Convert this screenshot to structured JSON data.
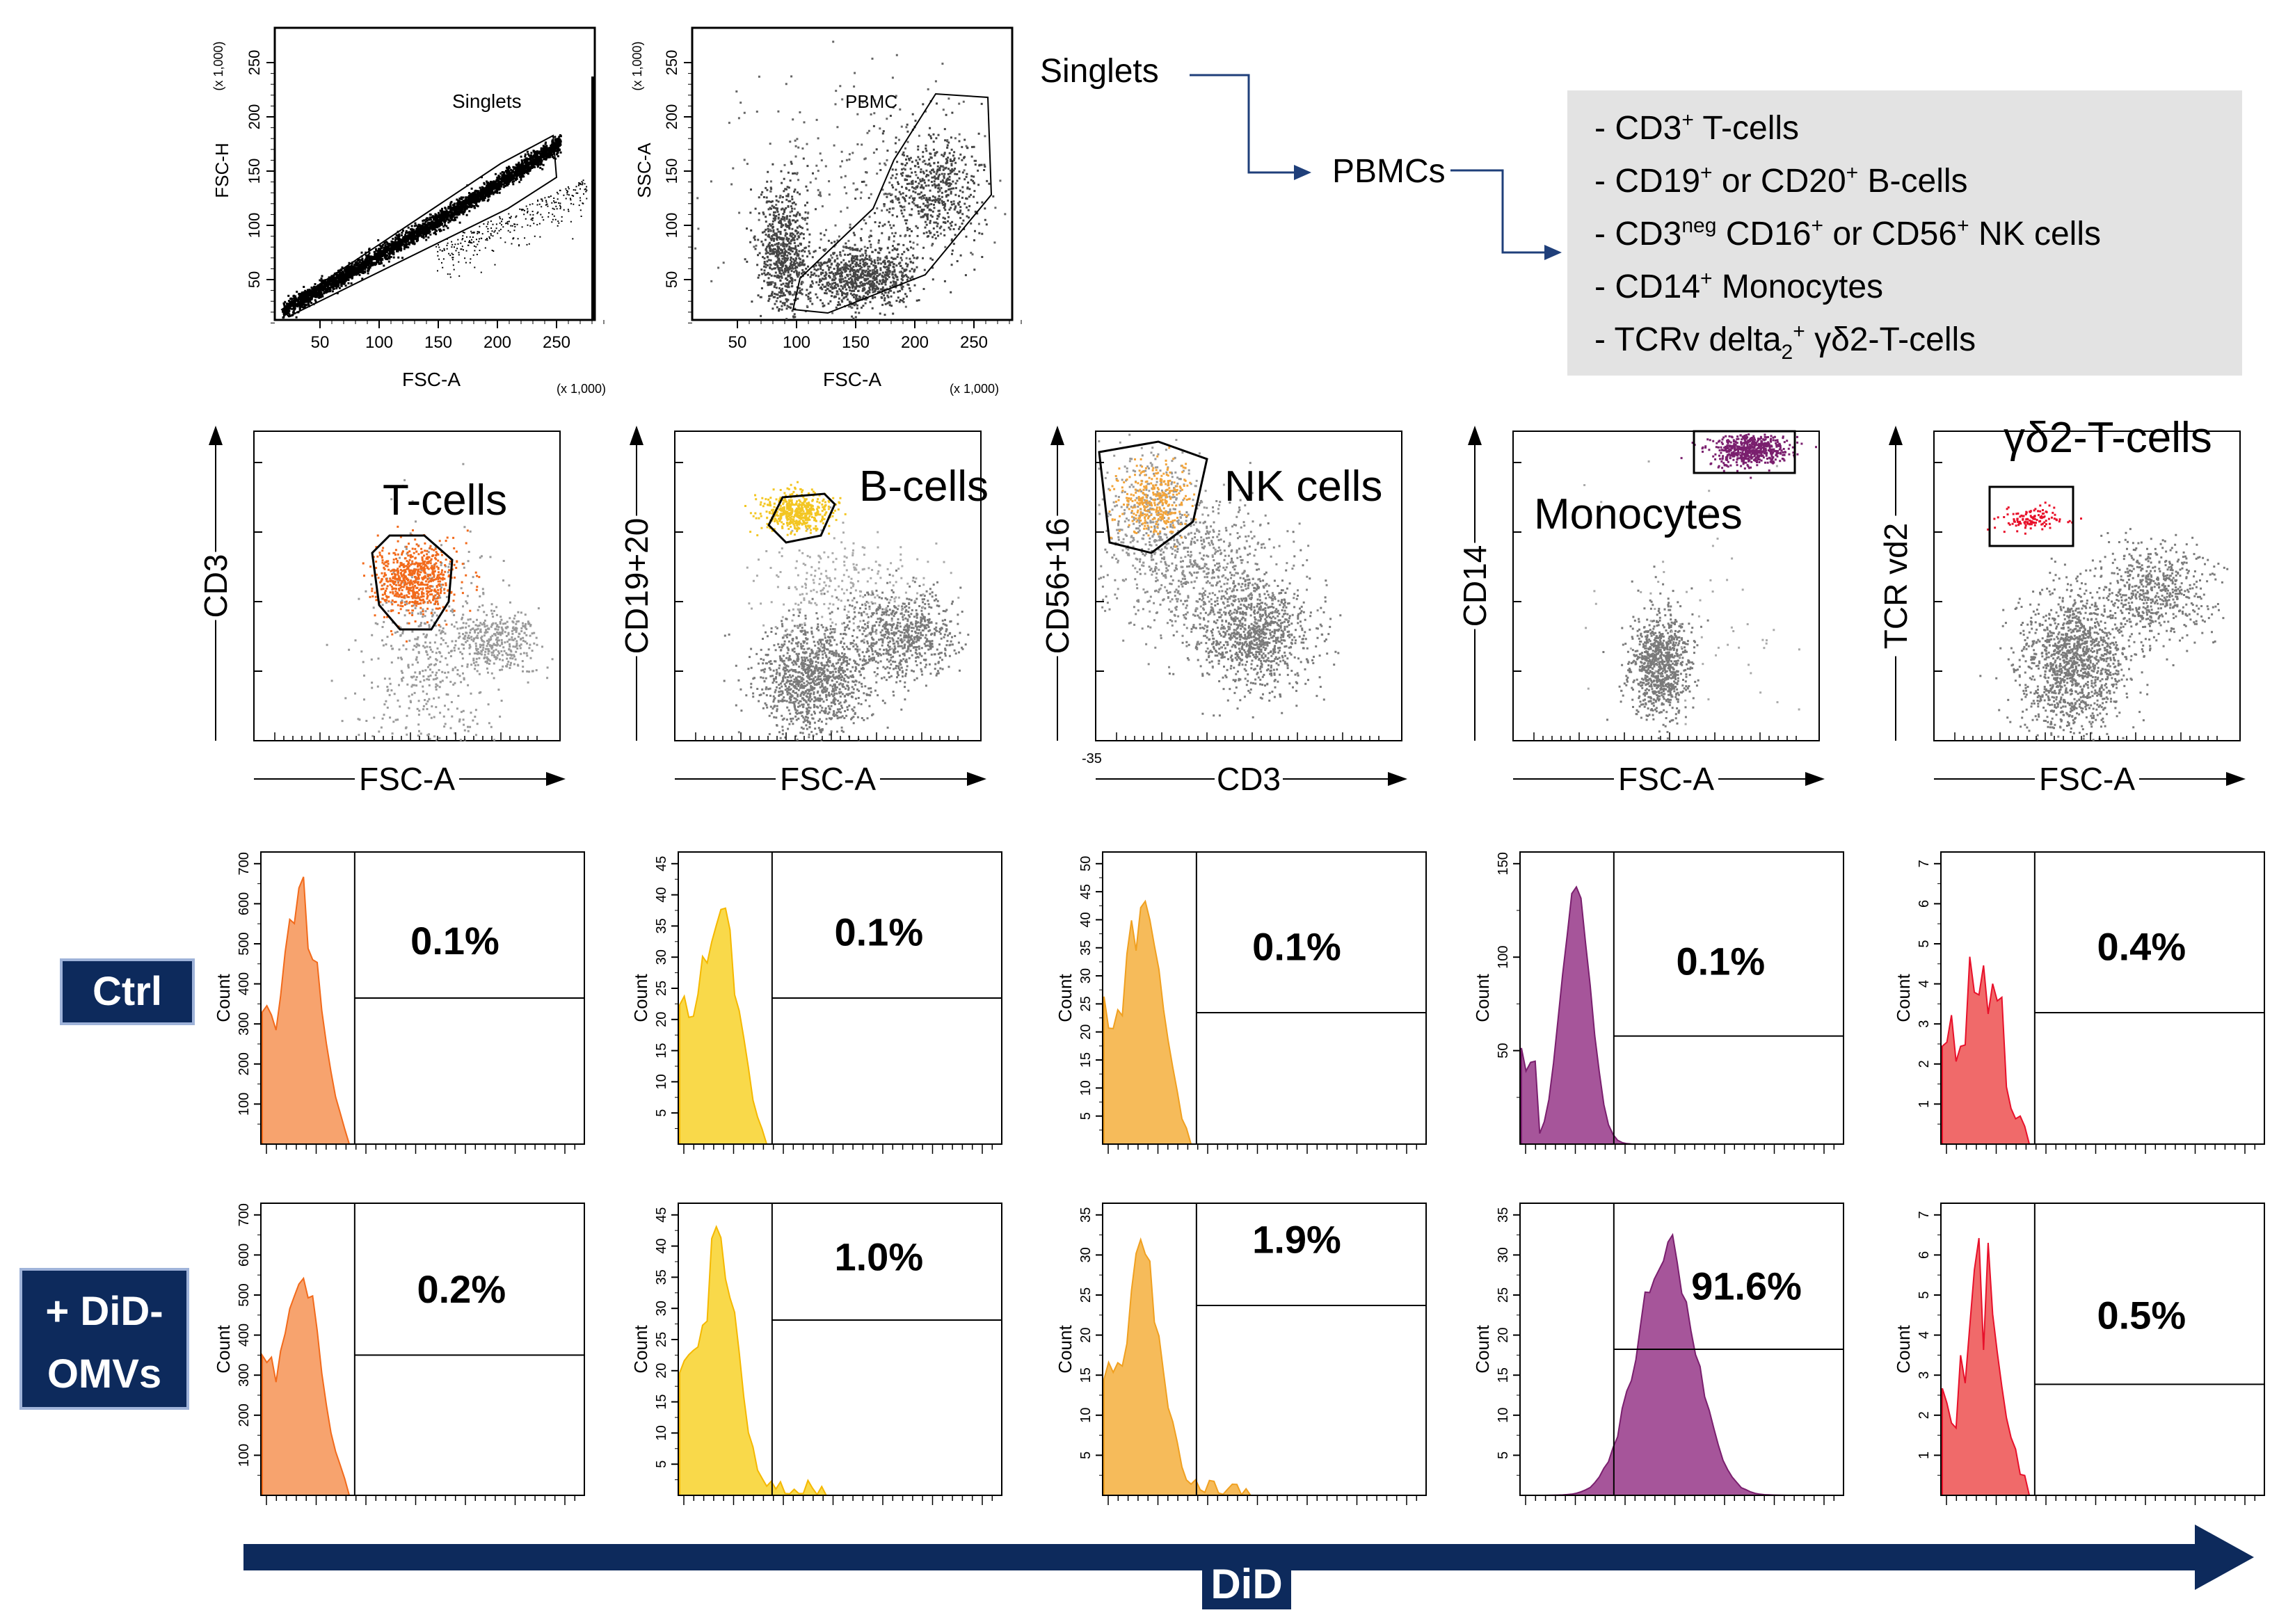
{
  "colors": {
    "tcell": "#f26a1b",
    "tcell_hist": "#f7a36e",
    "bcell": "#f3c623",
    "bcell_hist": "#f9d94a",
    "nk": "#f2a43a",
    "nk_hist": "#f6bb5a",
    "mono": "#7a1f6e",
    "mono_hist": "#a6559a",
    "gd": "#e8102a",
    "gd_hist": "#f06a6a",
    "navy": "#0d2a5c",
    "grey_dots": "#777777",
    "box_grey": "#e3e3e3"
  },
  "gating": {
    "plot1": {
      "ylabel": "FSC-H",
      "xlabel": "FSC-A",
      "scale": "(x 1,000)",
      "gate": "Singlets",
      "xticks": [
        "50",
        "100",
        "150",
        "200",
        "250"
      ],
      "yticks": [
        "50",
        "100",
        "150",
        "200",
        "250"
      ]
    },
    "plot2": {
      "ylabel": "SSC-A",
      "xlabel": "FSC-A",
      "scale": "(x 1,000)",
      "gate": "PBMC",
      "xticks": [
        "50",
        "100",
        "150",
        "200",
        "250"
      ],
      "yticks": [
        "50",
        "100",
        "150",
        "200",
        "250"
      ]
    },
    "flow_singlets": "Singlets",
    "flow_pbmcs": "PBMCs",
    "populations": [
      {
        "pre": "- CD3",
        "sup": "+",
        "post": " T-cells"
      },
      {
        "pre": "- CD19",
        "sup": "+",
        "mid": " or CD20",
        "sup2": "+",
        "post": " B-cells"
      },
      {
        "pre": "- CD3",
        "sup": "neg",
        "mid": " CD16",
        "sup2": "+",
        "mid2": " or CD56",
        "sup3": "+",
        "post": " NK cells"
      },
      {
        "pre": "- CD14",
        "sup": "+",
        "post": " Monocytes"
      },
      {
        "pre": "- TCRv delta",
        "sub": "2",
        "sup": "+",
        "post": " γδ2-T-cells"
      }
    ]
  },
  "scatter_panels": [
    {
      "ylabel": "CD3",
      "xlabel": "FSC-A",
      "title": "T-cells"
    },
    {
      "ylabel": "CD19+20",
      "xlabel": "FSC-A",
      "title": "B-cells"
    },
    {
      "ylabel": "CD56+16",
      "xlabel": "CD3",
      "title": "NK cells",
      "xmin_label": "-35"
    },
    {
      "ylabel": "CD14",
      "xlabel": "FSC-A",
      "title": "Monocytes"
    },
    {
      "ylabel": "TCR vd2",
      "xlabel": "FSC-A",
      "title": "γδ2-T-cells"
    }
  ],
  "row_labels": {
    "ctrl": "Ctrl",
    "did_line1": "+ DiD-",
    "did_line2": "OMVs"
  },
  "axis_label": "DiD",
  "hist_ylabel": "Count",
  "chart_data": {
    "type": "histogram",
    "x_axis": "DiD",
    "y_axis": "Count",
    "populations": [
      "T-cells",
      "B-cells",
      "NK cells",
      "Monocytes",
      "γδ2-T-cells"
    ],
    "series": [
      {
        "name": "Ctrl",
        "positive_percent": [
          "0.1%",
          "0.1%",
          "0.1%",
          "0.1%",
          "0.4%"
        ]
      },
      {
        "name": "+ DiD-OMVs",
        "positive_percent": [
          "0.2%",
          "1.0%",
          "1.9%",
          "91.6%",
          "0.5%"
        ]
      }
    ],
    "count_ticks": {
      "ctrl": [
        [
          "100",
          "200",
          "300",
          "400",
          "500",
          "600",
          "700"
        ],
        [
          "5",
          "10",
          "15",
          "20",
          "25",
          "30",
          "35",
          "40",
          "45"
        ],
        [
          "5",
          "10",
          "15",
          "20",
          "25",
          "30",
          "35",
          "40",
          "45",
          "50"
        ],
        [
          "50",
          "100",
          "150"
        ],
        [
          "1",
          "2",
          "3",
          "4",
          "5",
          "6",
          "7"
        ]
      ],
      "did": [
        [
          "100",
          "200",
          "300",
          "400",
          "500",
          "600",
          "700"
        ],
        [
          "5",
          "10",
          "15",
          "20",
          "25",
          "30",
          "35",
          "40",
          "45"
        ],
        [
          "5",
          "10",
          "15",
          "20",
          "25",
          "30",
          "35"
        ],
        [
          "5",
          "10",
          "15",
          "20",
          "25",
          "30",
          "35"
        ],
        [
          "1",
          "2",
          "3",
          "4",
          "5",
          "6",
          "7"
        ]
      ]
    }
  }
}
